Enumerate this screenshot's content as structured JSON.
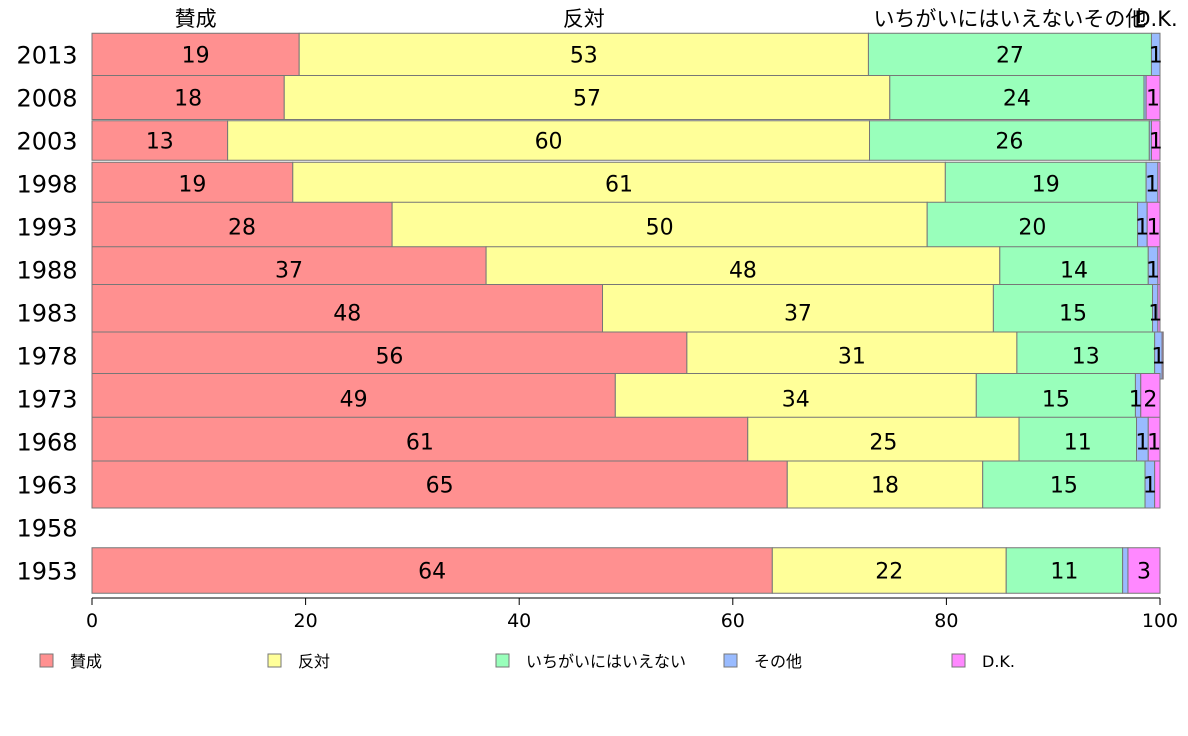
{
  "chart_data": {
    "type": "bar",
    "orientation": "horizontal",
    "stacked": true,
    "categories": [
      "2013",
      "2008",
      "2003",
      "1998",
      "1993",
      "1988",
      "1983",
      "1978",
      "1973",
      "1968",
      "1963",
      "1958",
      "1953"
    ],
    "series": [
      {
        "name": "賛成",
        "color": "#ff9090",
        "values": [
          19.4,
          18,
          12.7,
          18.8,
          28.1,
          36.9,
          47.8,
          55.7,
          49,
          61.4,
          65.1,
          null,
          63.7
        ]
      },
      {
        "name": "反対",
        "color": "#ffff99",
        "values": [
          53.3,
          56.7,
          60.1,
          61.1,
          50.1,
          48.1,
          36.6,
          30.9,
          33.8,
          25.4,
          18.3,
          null,
          21.9
        ]
      },
      {
        "name": "いちがいにはいえない",
        "color": "#99ffbb",
        "values": [
          26.5,
          23.8,
          26.2,
          18.8,
          19.7,
          13.9,
          14.9,
          12.9,
          14.9,
          11,
          15.2,
          null,
          10.9
        ]
      },
      {
        "name": "その他",
        "color": "#99bbff",
        "values": [
          0.8,
          0.2,
          0.2,
          1.1,
          0.9,
          0.9,
          0.5,
          0.7,
          0.5,
          1.1,
          0.9,
          null,
          0.5
        ]
      },
      {
        "name": "D.K.",
        "color": "#ff88ff",
        "values": [
          0,
          1.3,
          0.8,
          0.2,
          1.2,
          0.2,
          0.2,
          0.1,
          1.8,
          1.1,
          0.5,
          null,
          3
        ]
      }
    ],
    "data_labels": [
      [
        "19",
        "53",
        "27",
        "1",
        ""
      ],
      [
        "18",
        "57",
        "24",
        "",
        "1"
      ],
      [
        "13",
        "60",
        "26",
        "",
        "1"
      ],
      [
        "19",
        "61",
        "19",
        "1",
        ""
      ],
      [
        "28",
        "50",
        "20",
        "1",
        "1"
      ],
      [
        "37",
        "48",
        "14",
        "1",
        ""
      ],
      [
        "48",
        "37",
        "15",
        "1",
        ""
      ],
      [
        "56",
        "31",
        "13",
        "1",
        ""
      ],
      [
        "49",
        "34",
        "15",
        "1",
        "2"
      ],
      [
        "61",
        "25",
        "11",
        "1",
        "1"
      ],
      [
        "65",
        "18",
        "15",
        "1",
        ""
      ],
      [
        "",
        "",
        "",
        "",
        ""
      ],
      [
        "64",
        "22",
        "11",
        "",
        "3"
      ]
    ],
    "bar_size_weights": [
      0.55,
      0.6,
      0.45,
      0.55,
      0.75,
      0.65,
      1.0,
      0.7,
      0.8,
      0.75,
      0.7,
      0,
      0.65
    ],
    "top_column_labels": [
      "賛成",
      "反対",
      "いちがいにはいえないその他",
      "D.K."
    ],
    "xlim": [
      0,
      100
    ],
    "xticks": [
      0,
      20,
      40,
      60,
      80,
      100
    ],
    "legend_position": "bottom",
    "grid": false
  }
}
